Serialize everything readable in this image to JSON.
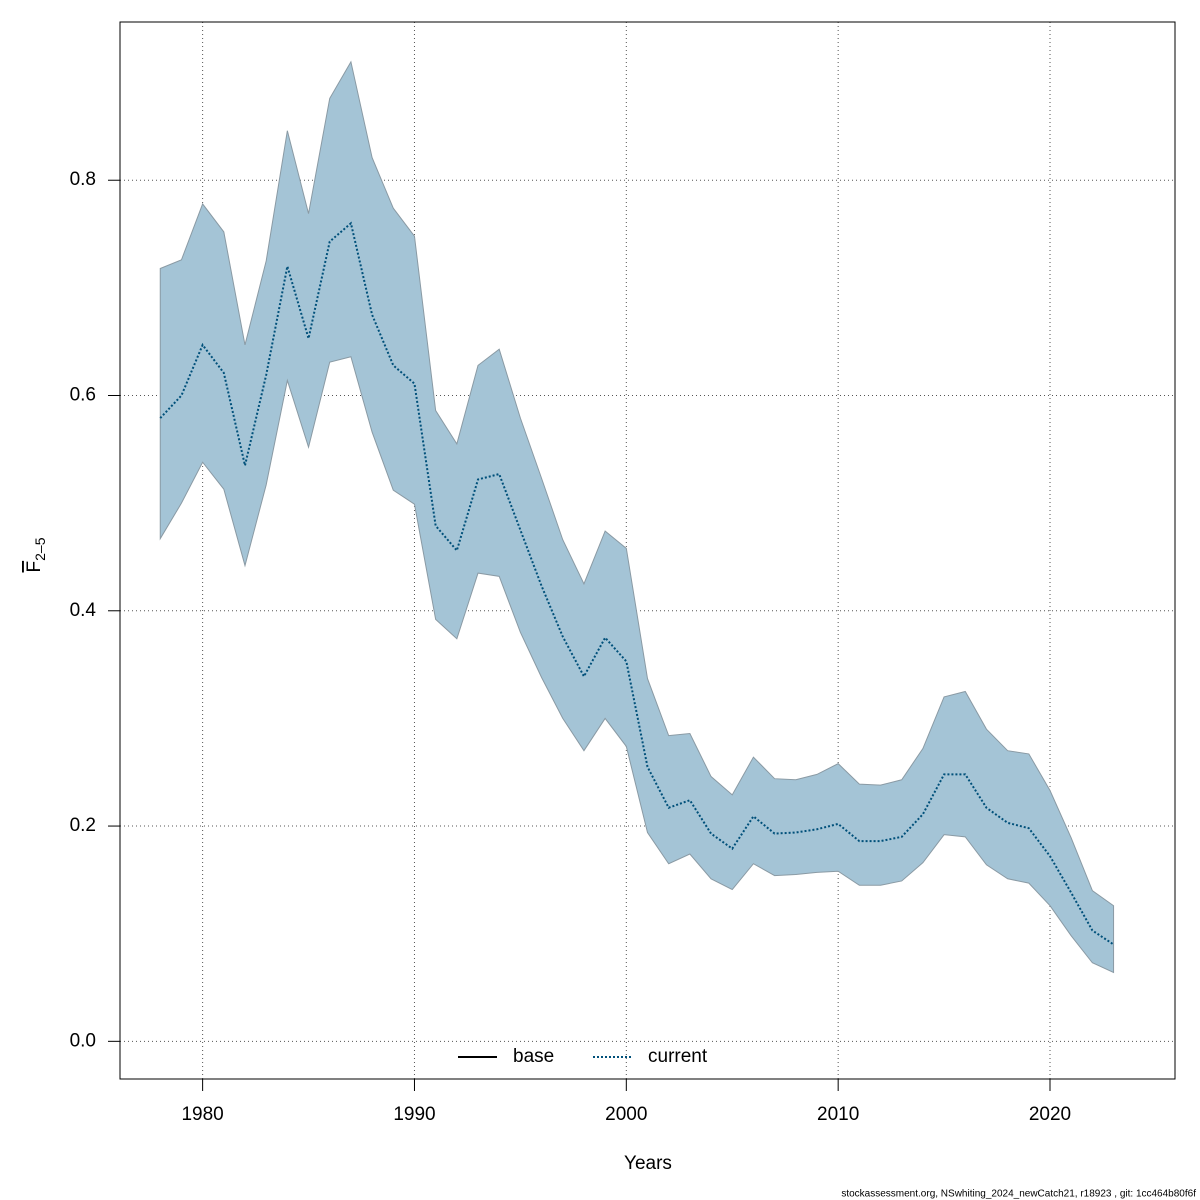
{
  "chart_data": {
    "type": "line",
    "xlabel": "Years",
    "ylabel": {
      "main": "F",
      "sub": "2–5"
    },
    "footer": "stockassessment.org, NSwhiting_2024_newCatch21, r18923 , git: 1cc464b80f6f",
    "x": [
      1978,
      1979,
      1980,
      1981,
      1982,
      1983,
      1984,
      1985,
      1986,
      1987,
      1988,
      1989,
      1990,
      1991,
      1992,
      1993,
      1994,
      1995,
      1996,
      1997,
      1998,
      1999,
      2000,
      2001,
      2002,
      2003,
      2004,
      2005,
      2006,
      2007,
      2008,
      2009,
      2010,
      2011,
      2012,
      2013,
      2014,
      2015,
      2016,
      2017,
      2018,
      2019,
      2020,
      2021,
      2022,
      2023
    ],
    "series": [
      {
        "name": "base",
        "color": "#000000",
        "style": "solid"
      },
      {
        "name": "current",
        "color": "#00507a",
        "style": "dotted",
        "band_color": "#a4c4d6",
        "values": [
          0.579,
          0.6,
          0.647,
          0.621,
          0.535,
          0.619,
          0.72,
          0.653,
          0.743,
          0.76,
          0.675,
          0.628,
          0.611,
          0.479,
          0.456,
          0.522,
          0.527,
          0.475,
          0.423,
          0.376,
          0.339,
          0.375,
          0.353,
          0.255,
          0.217,
          0.224,
          0.193,
          0.179,
          0.209,
          0.193,
          0.194,
          0.197,
          0.202,
          0.186,
          0.186,
          0.19,
          0.211,
          0.248,
          0.248,
          0.217,
          0.203,
          0.198,
          0.172,
          0.138,
          0.103,
          0.09
        ],
        "upper": [
          0.718,
          0.726,
          0.778,
          0.752,
          0.647,
          0.725,
          0.846,
          0.769,
          0.876,
          0.91,
          0.821,
          0.774,
          0.748,
          0.586,
          0.555,
          0.628,
          0.643,
          0.579,
          0.523,
          0.466,
          0.425,
          0.474,
          0.458,
          0.337,
          0.284,
          0.286,
          0.246,
          0.229,
          0.264,
          0.244,
          0.243,
          0.248,
          0.258,
          0.239,
          0.238,
          0.243,
          0.272,
          0.32,
          0.325,
          0.29,
          0.27,
          0.267,
          0.233,
          0.189,
          0.14,
          0.126
        ],
        "lower": [
          0.467,
          0.5,
          0.538,
          0.513,
          0.442,
          0.517,
          0.614,
          0.552,
          0.631,
          0.636,
          0.566,
          0.512,
          0.499,
          0.392,
          0.374,
          0.435,
          0.432,
          0.38,
          0.338,
          0.3,
          0.27,
          0.3,
          0.274,
          0.194,
          0.165,
          0.174,
          0.151,
          0.141,
          0.165,
          0.154,
          0.155,
          0.157,
          0.158,
          0.145,
          0.145,
          0.149,
          0.166,
          0.192,
          0.19,
          0.164,
          0.151,
          0.147,
          0.126,
          0.098,
          0.073,
          0.064
        ]
      }
    ],
    "xlim": [
      1976.1,
      2025.9
    ],
    "ylim": [
      -0.035,
      0.947
    ],
    "xticks": [
      1980,
      1990,
      2000,
      2010,
      2020
    ],
    "yticks": [
      {
        "value": 0,
        "label": "0.0"
      },
      0.2,
      0.4,
      0.6,
      0.8
    ],
    "grid": true,
    "legend_position": "bottom"
  }
}
